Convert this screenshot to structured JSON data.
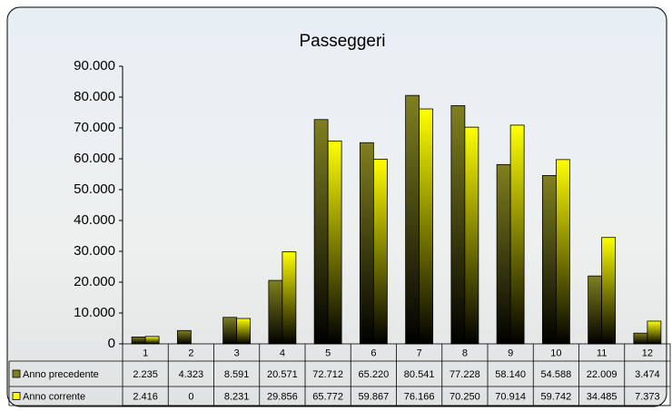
{
  "chart_data": {
    "type": "bar",
    "title": "Passeggeri",
    "categories": [
      "1",
      "2",
      "3",
      "4",
      "5",
      "6",
      "7",
      "8",
      "9",
      "10",
      "11",
      "12"
    ],
    "series": [
      {
        "name": "Anno precedente",
        "color": "#808020",
        "values": [
          2235,
          4323,
          8591,
          20571,
          72712,
          65220,
          80541,
          77228,
          58140,
          54588,
          22009,
          3474
        ],
        "value_labels": [
          "2.235",
          "4.323",
          "8.591",
          "20.571",
          "72.712",
          "65.220",
          "80.541",
          "77.228",
          "58.140",
          "54.588",
          "22.009",
          "3.474"
        ]
      },
      {
        "name": "Anno corrente",
        "color": "#ffff00",
        "values": [
          2416,
          0,
          8231,
          29856,
          65772,
          59867,
          76166,
          70250,
          70914,
          59742,
          34485,
          7373
        ],
        "value_labels": [
          "2.416",
          "0",
          "8.231",
          "29.856",
          "65.772",
          "59.867",
          "76.166",
          "70.250",
          "70.914",
          "59.742",
          "34.485",
          "7.373"
        ]
      }
    ],
    "ylim": [
      0,
      90000
    ],
    "yticks": [
      0,
      {
        "value": 10000,
        "label": "10.000"
      },
      {
        "value": 20000,
        "label": "20.000"
      },
      {
        "value": 30000,
        "label": "30.000"
      },
      {
        "value": 40000,
        "label": "40.000"
      },
      {
        "value": 50000,
        "label": "50.000"
      },
      {
        "value": 60000,
        "label": "60.000"
      },
      {
        "value": 70000,
        "label": "70.000"
      },
      {
        "value": 80000,
        "label": "80.000"
      },
      {
        "value": 90000,
        "label": "90.000"
      }
    ],
    "data_table": true
  }
}
